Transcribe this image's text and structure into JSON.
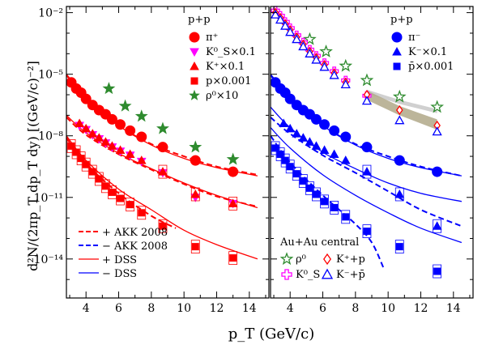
{
  "chart_data": {
    "type": "scatter",
    "ylabel": "d²N/(2πp_T dp_T dy) [(GeV/c)⁻²]",
    "xlabel": "p_T (GeV/c)",
    "x_ticks": [
      "4",
      "6",
      "8",
      "10",
      "12",
      "14"
    ],
    "y_ticks": [
      "10⁻²",
      "10⁻⁵",
      "10⁻⁸",
      "10⁻¹¹",
      "10⁻¹⁴"
    ],
    "xlim": [
      2.8,
      15.2
    ],
    "ylim_log10": [
      -15.9,
      -1.7
    ],
    "y_scale": "log",
    "grid": false,
    "theory_legend": {
      "placement": "bottom-left",
      "entries": [
        {
          "label": "+ AKK 2008",
          "color": "#ff0000",
          "dash": true
        },
        {
          "label": "− AKK 2008",
          "color": "#0000ff",
          "dash": true
        },
        {
          "label": "+ DSS",
          "color": "#ff0000",
          "dash": false
        },
        {
          "label": "− DSS",
          "color": "#0000ff",
          "dash": false
        }
      ]
    },
    "panels": [
      {
        "title": "p+p",
        "legend_placement": "top-right",
        "series": [
          {
            "name": "π⁺",
            "marker": "circle",
            "color": "#ff0000",
            "x": [
              3.1,
              3.4,
              3.7,
              4.0,
              4.4,
              4.8,
              5.2,
              5.6,
              6.1,
              6.7,
              7.4,
              8.7,
              10.7,
              13.0
            ],
            "log10_y": [
              -5.4,
              -5.7,
              -5.9,
              -6.2,
              -6.5,
              -6.75,
              -6.95,
              -7.2,
              -7.45,
              -7.75,
              -8.05,
              -8.55,
              -9.2,
              -9.75
            ]
          },
          {
            "name": "K⁰_S×0.1",
            "marker": "triangle-down",
            "color": "#ff00ff",
            "x": [
              3.6,
              4.0,
              4.4,
              4.8,
              5.2,
              5.6,
              6.1,
              6.7,
              7.4,
              8.7,
              10.7,
              13.0
            ],
            "log10_y": [
              -7.5,
              -7.7,
              -7.95,
              -8.15,
              -8.35,
              -8.55,
              -8.75,
              -8.95,
              -9.25,
              -9.8,
              -11.0,
              -11.3
            ]
          },
          {
            "name": "K⁺×0.1",
            "marker": "triangle-up",
            "color": "#ff0000",
            "x": [
              3.6,
              4.0,
              4.4,
              4.8,
              5.2,
              5.6,
              6.1,
              6.7,
              7.4,
              8.7,
              10.7,
              13.0
            ],
            "log10_y": [
              -7.4,
              -7.65,
              -7.9,
              -8.1,
              -8.3,
              -8.5,
              -8.7,
              -8.9,
              -9.2,
              -9.75,
              -10.85,
              -11.3
            ]
          },
          {
            "name": "p×0.001",
            "marker": "square",
            "color": "#ff0000",
            "x": [
              3.1,
              3.4,
              3.7,
              4.0,
              4.4,
              4.8,
              5.2,
              5.6,
              6.1,
              6.7,
              7.4,
              8.7,
              10.7,
              13.0
            ],
            "log10_y": [
              -8.5,
              -8.8,
              -9.1,
              -9.4,
              -9.75,
              -10.1,
              -10.45,
              -10.75,
              -11.05,
              -11.35,
              -11.75,
              -12.4,
              -13.4,
              -13.95
            ]
          },
          {
            "name": "ρ⁰×10",
            "marker": "star",
            "color": "#2e8b2e",
            "x": [
              5.4,
              6.4,
              7.4,
              8.7,
              10.7,
              13.0
            ],
            "log10_y": [
              -5.7,
              -6.55,
              -7.05,
              -7.65,
              -8.55,
              -9.15
            ]
          }
        ]
      },
      {
        "title": "p+p",
        "legend_placement": "top-right",
        "series": [
          {
            "name": "π⁻",
            "marker": "circle",
            "color": "#0000ff",
            "x": [
              3.1,
              3.4,
              3.7,
              4.0,
              4.4,
              4.8,
              5.2,
              5.6,
              6.1,
              6.7,
              7.4,
              8.7,
              10.7,
              13.0
            ],
            "log10_y": [
              -5.4,
              -5.7,
              -5.9,
              -6.2,
              -6.5,
              -6.75,
              -6.95,
              -7.2,
              -7.45,
              -7.75,
              -8.05,
              -8.55,
              -9.2,
              -9.75
            ]
          },
          {
            "name": "K⁻×0.1",
            "marker": "triangle-up",
            "color": "#0000ff",
            "x": [
              3.6,
              4.0,
              4.4,
              4.8,
              5.2,
              5.6,
              6.1,
              6.7,
              7.4,
              8.7,
              10.7,
              13.0
            ],
            "log10_y": [
              -7.4,
              -7.65,
              -7.9,
              -8.1,
              -8.3,
              -8.5,
              -8.7,
              -8.9,
              -9.2,
              -9.75,
              -10.85,
              -12.4
            ]
          },
          {
            "name": "p̄×0.001",
            "marker": "square",
            "color": "#0000ff",
            "x": [
              3.1,
              3.4,
              3.7,
              4.0,
              4.4,
              4.8,
              5.2,
              5.6,
              6.1,
              6.7,
              7.4,
              8.7,
              10.7,
              13.0
            ],
            "log10_y": [
              -8.6,
              -8.9,
              -9.2,
              -9.5,
              -9.85,
              -10.2,
              -10.55,
              -10.85,
              -11.2,
              -11.5,
              -11.95,
              -12.65,
              -13.4,
              -14.6
            ]
          }
        ]
      }
    ],
    "auau_legend": {
      "title": "Au+Au central",
      "placement": "bottom-right",
      "entries": [
        {
          "label": "ρ⁰",
          "marker": "star-open",
          "color": "#2e8b2e"
        },
        {
          "label": "K⁺+p",
          "marker": "diamond-open",
          "color": "#ff0000"
        },
        {
          "label": "K⁰_S",
          "marker": "cross-open",
          "color": "#ff00ff"
        },
        {
          "label": "K⁻+p̄",
          "marker": "triangle-open",
          "color": "#0000ff"
        }
      ]
    },
    "auau_series": [
      {
        "name": "ρ⁰",
        "marker": "star-open",
        "color": "#2e8b2e",
        "x": [
          5.2,
          6.2,
          7.4,
          8.7,
          10.7,
          13.0
        ],
        "log10_y": [
          -3.3,
          -3.9,
          -4.6,
          -5.3,
          -6.1,
          -6.6
        ]
      },
      {
        "name": "K⁰_S",
        "marker": "cross-open",
        "color": "#ff00ff",
        "x": [
          3.1,
          3.4,
          3.7,
          4.0,
          4.4,
          4.8,
          5.2,
          5.6,
          6.1,
          6.7,
          7.4,
          8.7
        ],
        "log10_y": [
          -1.9,
          -2.15,
          -2.45,
          -2.75,
          -3.1,
          -3.45,
          -3.8,
          -4.1,
          -4.45,
          -4.85,
          -5.3,
          -6.05
        ]
      },
      {
        "name": "K⁺+p",
        "marker": "diamond-open",
        "color": "#ff0000",
        "x": [
          3.1,
          3.4,
          3.7,
          4.0,
          4.4,
          4.8,
          5.2,
          5.6,
          6.1,
          6.7,
          7.4,
          8.7,
          10.7,
          13.0
        ],
        "log10_y": [
          -2.0,
          -2.25,
          -2.55,
          -2.85,
          -3.2,
          -3.55,
          -3.9,
          -4.2,
          -4.55,
          -4.95,
          -5.4,
          -6.0,
          -6.75,
          -7.5
        ]
      },
      {
        "name": "K⁻+p̄",
        "marker": "triangle-open",
        "color": "#0000ff",
        "x": [
          3.1,
          3.4,
          3.7,
          4.0,
          4.4,
          4.8,
          5.2,
          5.6,
          6.1,
          6.7,
          7.4,
          8.7,
          10.7,
          13.0
        ],
        "log10_y": [
          -2.1,
          -2.35,
          -2.65,
          -2.95,
          -3.3,
          -3.65,
          -4.0,
          -4.3,
          -4.65,
          -5.05,
          -5.5,
          -6.3,
          -7.25,
          -7.8
        ]
      }
    ],
    "band": {
      "color": "#b0a888",
      "x": [
        8.7,
        10.7,
        13.0
      ],
      "log10_y_low": [
        -6.25,
        -7.0,
        -7.7
      ],
      "log10_y_high": [
        -5.8,
        -6.55,
        -7.2
      ]
    },
    "band_light": {
      "color": "#c8c8c8",
      "x": [
        8.7,
        10.7,
        13.0
      ],
      "log10_y_low": [
        -5.95,
        -6.45,
        -6.9
      ],
      "log10_y_high": [
        -5.75,
        -6.25,
        -6.7
      ]
    },
    "curves": {
      "left": [
        {
          "color": "#ff0000",
          "dash": false,
          "x": [
            2.8,
            4,
            6,
            8,
            10,
            12,
            14.5
          ],
          "log10_y": [
            -5.0,
            -6.1,
            -7.5,
            -8.45,
            -9.1,
            -9.55,
            -9.95
          ]
        },
        {
          "color": "#ff0000",
          "dash": true,
          "x": [
            2.8,
            4,
            6,
            8,
            10,
            12,
            14.5
          ],
          "log10_y": [
            -5.05,
            -6.15,
            -7.5,
            -8.4,
            -9.0,
            -9.5,
            -9.9
          ]
        },
        {
          "color": "#ff0000",
          "dash": false,
          "x": [
            2.8,
            4,
            6,
            8,
            10,
            12,
            14.5
          ],
          "log10_y": [
            -7.0,
            -7.85,
            -8.85,
            -9.6,
            -10.3,
            -10.9,
            -11.5
          ]
        },
        {
          "color": "#ff0000",
          "dash": true,
          "x": [
            2.8,
            4,
            6,
            8,
            10,
            12,
            14.5
          ],
          "log10_y": [
            -7.1,
            -7.95,
            -8.9,
            -9.65,
            -10.35,
            -10.95,
            -11.45
          ]
        },
        {
          "color": "#ff0000",
          "dash": false,
          "x": [
            2.8,
            4,
            6,
            8,
            10,
            12,
            14.5
          ],
          "log10_y": [
            -8.0,
            -9.2,
            -10.6,
            -11.6,
            -12.6,
            -13.3,
            -14.0
          ]
        },
        {
          "color": "#ff0000",
          "dash": true,
          "x": [
            2.8,
            4,
            6,
            8,
            9.5
          ],
          "log10_y": [
            -8.1,
            -9.35,
            -10.8,
            -11.9,
            -12.5
          ]
        }
      ],
      "right": [
        {
          "color": "#0000ff",
          "dash": false,
          "x": [
            2.8,
            4,
            6,
            8,
            10,
            12,
            14.5
          ],
          "log10_y": [
            -5.0,
            -6.1,
            -7.5,
            -8.45,
            -9.1,
            -9.55,
            -9.95
          ]
        },
        {
          "color": "#0000ff",
          "dash": true,
          "x": [
            2.8,
            4,
            6,
            8,
            10,
            12,
            14.5
          ],
          "log10_y": [
            -5.05,
            -6.15,
            -7.5,
            -8.4,
            -9.0,
            -9.5,
            -9.95
          ]
        },
        {
          "color": "#0000ff",
          "dash": false,
          "x": [
            2.8,
            4,
            6,
            8,
            10,
            12,
            14.5
          ],
          "log10_y": [
            -6.6,
            -7.6,
            -8.8,
            -9.6,
            -10.3,
            -10.8,
            -11.2
          ]
        },
        {
          "color": "#0000ff",
          "dash": true,
          "x": [
            2.8,
            4,
            6,
            8,
            10,
            12,
            14.5
          ],
          "log10_y": [
            -7.1,
            -7.9,
            -8.95,
            -9.8,
            -10.7,
            -11.6,
            -12.4
          ]
        },
        {
          "color": "#0000ff",
          "dash": false,
          "x": [
            2.8,
            4,
            6,
            8,
            10,
            12,
            14.5
          ],
          "log10_y": [
            -7.6,
            -8.6,
            -9.9,
            -10.9,
            -11.75,
            -12.5,
            -13.2
          ]
        },
        {
          "color": "#0000ff",
          "dash": true,
          "x": [
            2.8,
            4,
            6,
            8,
            9.0,
            9.7
          ],
          "log10_y": [
            -8.0,
            -9.3,
            -10.9,
            -12.3,
            -13.2,
            -14.4
          ]
        }
      ]
    }
  }
}
